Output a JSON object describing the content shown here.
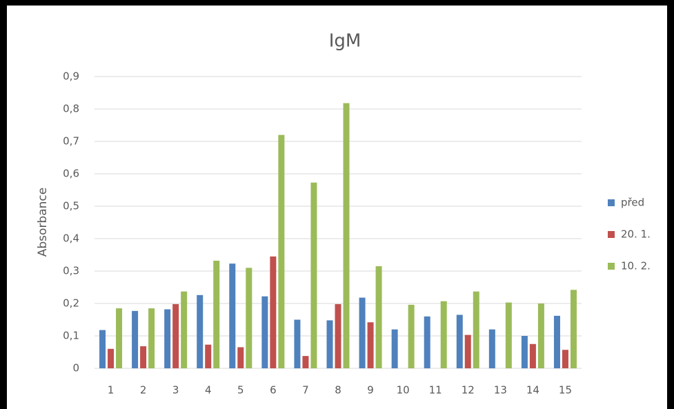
{
  "chart_data": {
    "type": "bar",
    "title": "IgM",
    "y_label": "Absorbance",
    "categories": [
      "1",
      "2",
      "3",
      "4",
      "5",
      "6",
      "7",
      "8",
      "9",
      "10",
      "11",
      "12",
      "13",
      "14",
      "15"
    ],
    "series": [
      {
        "name": "před",
        "color": "#4f81bd",
        "values": [
          0.118,
          0.177,
          0.182,
          0.226,
          0.323,
          0.222,
          0.15,
          0.148,
          0.218,
          0.12,
          0.16,
          0.165,
          0.12,
          0.1,
          0.162
        ]
      },
      {
        "name": "20. 1.",
        "color": "#c0504d",
        "values": [
          0.06,
          0.068,
          0.198,
          0.073,
          0.065,
          0.345,
          0.038,
          0.198,
          0.142,
          null,
          null,
          0.103,
          null,
          0.075,
          0.057
        ]
      },
      {
        "name": "10. 2.",
        "color": "#9bbb59",
        "values": [
          0.185,
          0.185,
          0.237,
          0.332,
          0.31,
          0.72,
          0.573,
          0.818,
          0.315,
          0.196,
          0.207,
          0.237,
          0.203,
          0.2,
          0.242
        ]
      }
    ],
    "ylim": [
      0,
      0.9
    ],
    "yticks": [
      0,
      {
        "value": 0.1,
        "label": "0,1"
      },
      {
        "value": 0.2,
        "label": "0,2"
      },
      {
        "value": 0.3,
        "label": "0,3"
      },
      {
        "value": 0.4,
        "label": "0,4"
      },
      {
        "value": 0.5,
        "label": "0,5"
      },
      {
        "value": 0.6,
        "label": "0,6"
      },
      {
        "value": 0.7,
        "label": "0,7"
      },
      {
        "value": 0.8,
        "label": "0,8"
      },
      {
        "value": 0.9,
        "label": "0,9"
      }
    ],
    "grid": true,
    "legend": "right"
  }
}
